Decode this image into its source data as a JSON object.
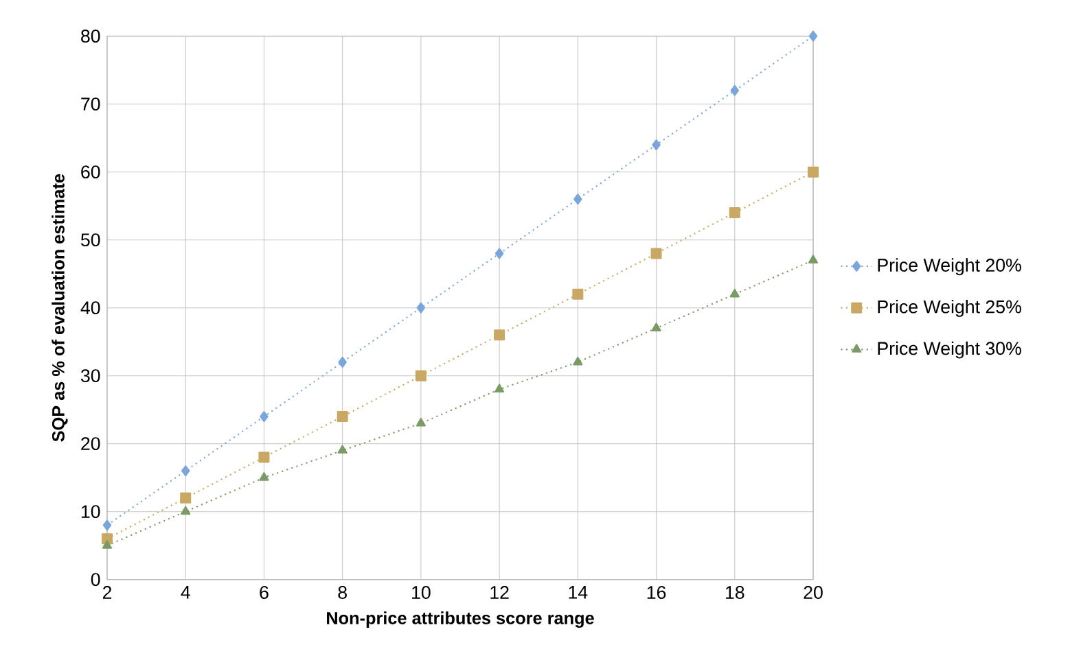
{
  "chart_data": {
    "type": "line",
    "xlabel": "Non-price attributes score range",
    "ylabel": "SQP as % of evaluation estimate",
    "x": [
      2,
      4,
      6,
      8,
      10,
      12,
      14,
      16,
      18,
      20
    ],
    "xlim": [
      2,
      20
    ],
    "xticks": [
      2,
      4,
      6,
      8,
      10,
      12,
      14,
      16,
      18,
      20
    ],
    "ylim": [
      0,
      80
    ],
    "yticks": [
      0,
      10,
      20,
      30,
      40,
      50,
      60,
      70,
      80
    ],
    "grid": true,
    "legend": "right",
    "line_style": "dotted",
    "series": [
      {
        "name": "Price Weight 20%",
        "color": "#7aa6dc",
        "marker": "diamond",
        "values": [
          8,
          16,
          24,
          32,
          40,
          48,
          56,
          64,
          72,
          80
        ]
      },
      {
        "name": "Price Weight 25%",
        "color": "#c9a864",
        "marker": "square",
        "values": [
          6,
          12,
          18,
          24,
          30,
          36,
          42,
          48,
          54,
          60
        ]
      },
      {
        "name": "Price Weight 30%",
        "color": "#7a9a66",
        "marker": "triangle",
        "values": [
          5,
          10,
          15,
          19,
          23,
          28,
          32,
          37,
          42,
          47
        ]
      }
    ]
  }
}
